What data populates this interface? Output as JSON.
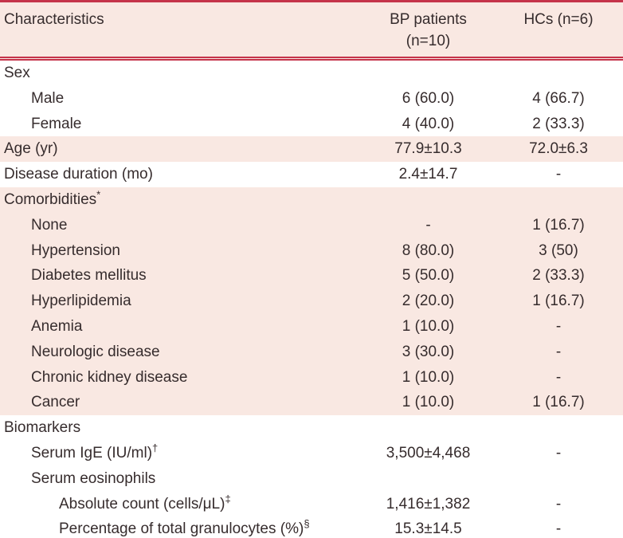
{
  "table": {
    "header": {
      "characteristics": "Characteristics",
      "bp_patients": "BP patients\n(n=10)",
      "hcs": "HCs (n=6)"
    },
    "accent_color": "#c5334a",
    "band_color": "#f9e8e2",
    "rows": [
      {
        "label": "Sex",
        "sup": "",
        "indent": 0,
        "band": "white",
        "bp": "",
        "hc": ""
      },
      {
        "label": "Male",
        "sup": "",
        "indent": 1,
        "band": "white",
        "bp": "6 (60.0)",
        "hc": "4 (66.7)"
      },
      {
        "label": "Female",
        "sup": "",
        "indent": 1,
        "band": "white",
        "bp": "4 (40.0)",
        "hc": "2 (33.3)"
      },
      {
        "label": "Age (yr)",
        "sup": "",
        "indent": 0,
        "band": "pink",
        "bp": "77.9±10.3",
        "hc": "72.0±6.3"
      },
      {
        "label": "Disease duration (mo)",
        "sup": "",
        "indent": 0,
        "band": "white",
        "bp": "2.4±14.7",
        "hc": "-"
      },
      {
        "label": "Comorbidities",
        "sup": "*",
        "indent": 0,
        "band": "pink",
        "bp": "",
        "hc": ""
      },
      {
        "label": "None",
        "sup": "",
        "indent": 1,
        "band": "pink",
        "bp": "-",
        "hc": "1 (16.7)"
      },
      {
        "label": "Hypertension",
        "sup": "",
        "indent": 1,
        "band": "pink",
        "bp": "8 (80.0)",
        "hc": "3 (50)"
      },
      {
        "label": "Diabetes mellitus",
        "sup": "",
        "indent": 1,
        "band": "pink",
        "bp": "5 (50.0)",
        "hc": "2 (33.3)"
      },
      {
        "label": "Hyperlipidemia",
        "sup": "",
        "indent": 1,
        "band": "pink",
        "bp": "2 (20.0)",
        "hc": "1 (16.7)"
      },
      {
        "label": "Anemia",
        "sup": "",
        "indent": 1,
        "band": "pink",
        "bp": "1 (10.0)",
        "hc": "-"
      },
      {
        "label": "Neurologic disease",
        "sup": "",
        "indent": 1,
        "band": "pink",
        "bp": "3 (30.0)",
        "hc": "-"
      },
      {
        "label": "Chronic kidney disease",
        "sup": "",
        "indent": 1,
        "band": "pink",
        "bp": "1 (10.0)",
        "hc": "-"
      },
      {
        "label": "Cancer",
        "sup": "",
        "indent": 1,
        "band": "pink",
        "bp": "1 (10.0)",
        "hc": "1 (16.7)"
      },
      {
        "label": "Biomarkers",
        "sup": "",
        "indent": 0,
        "band": "white",
        "bp": "",
        "hc": ""
      },
      {
        "label": "Serum IgE (IU/ml)",
        "sup": "†",
        "indent": 1,
        "band": "white",
        "bp": "3,500±4,468",
        "hc": "-"
      },
      {
        "label": "Serum eosinophils",
        "sup": "",
        "indent": 1,
        "band": "white",
        "bp": "",
        "hc": ""
      },
      {
        "label": "Absolute count (cells/μL)",
        "sup": "‡",
        "indent": 2,
        "band": "white",
        "bp": "1,416±1,382",
        "hc": "-"
      },
      {
        "label": "Percentage of total granulocytes (%)",
        "sup": "§",
        "indent": 2,
        "band": "white",
        "bp": "15.3±14.5",
        "hc": "-"
      }
    ]
  }
}
